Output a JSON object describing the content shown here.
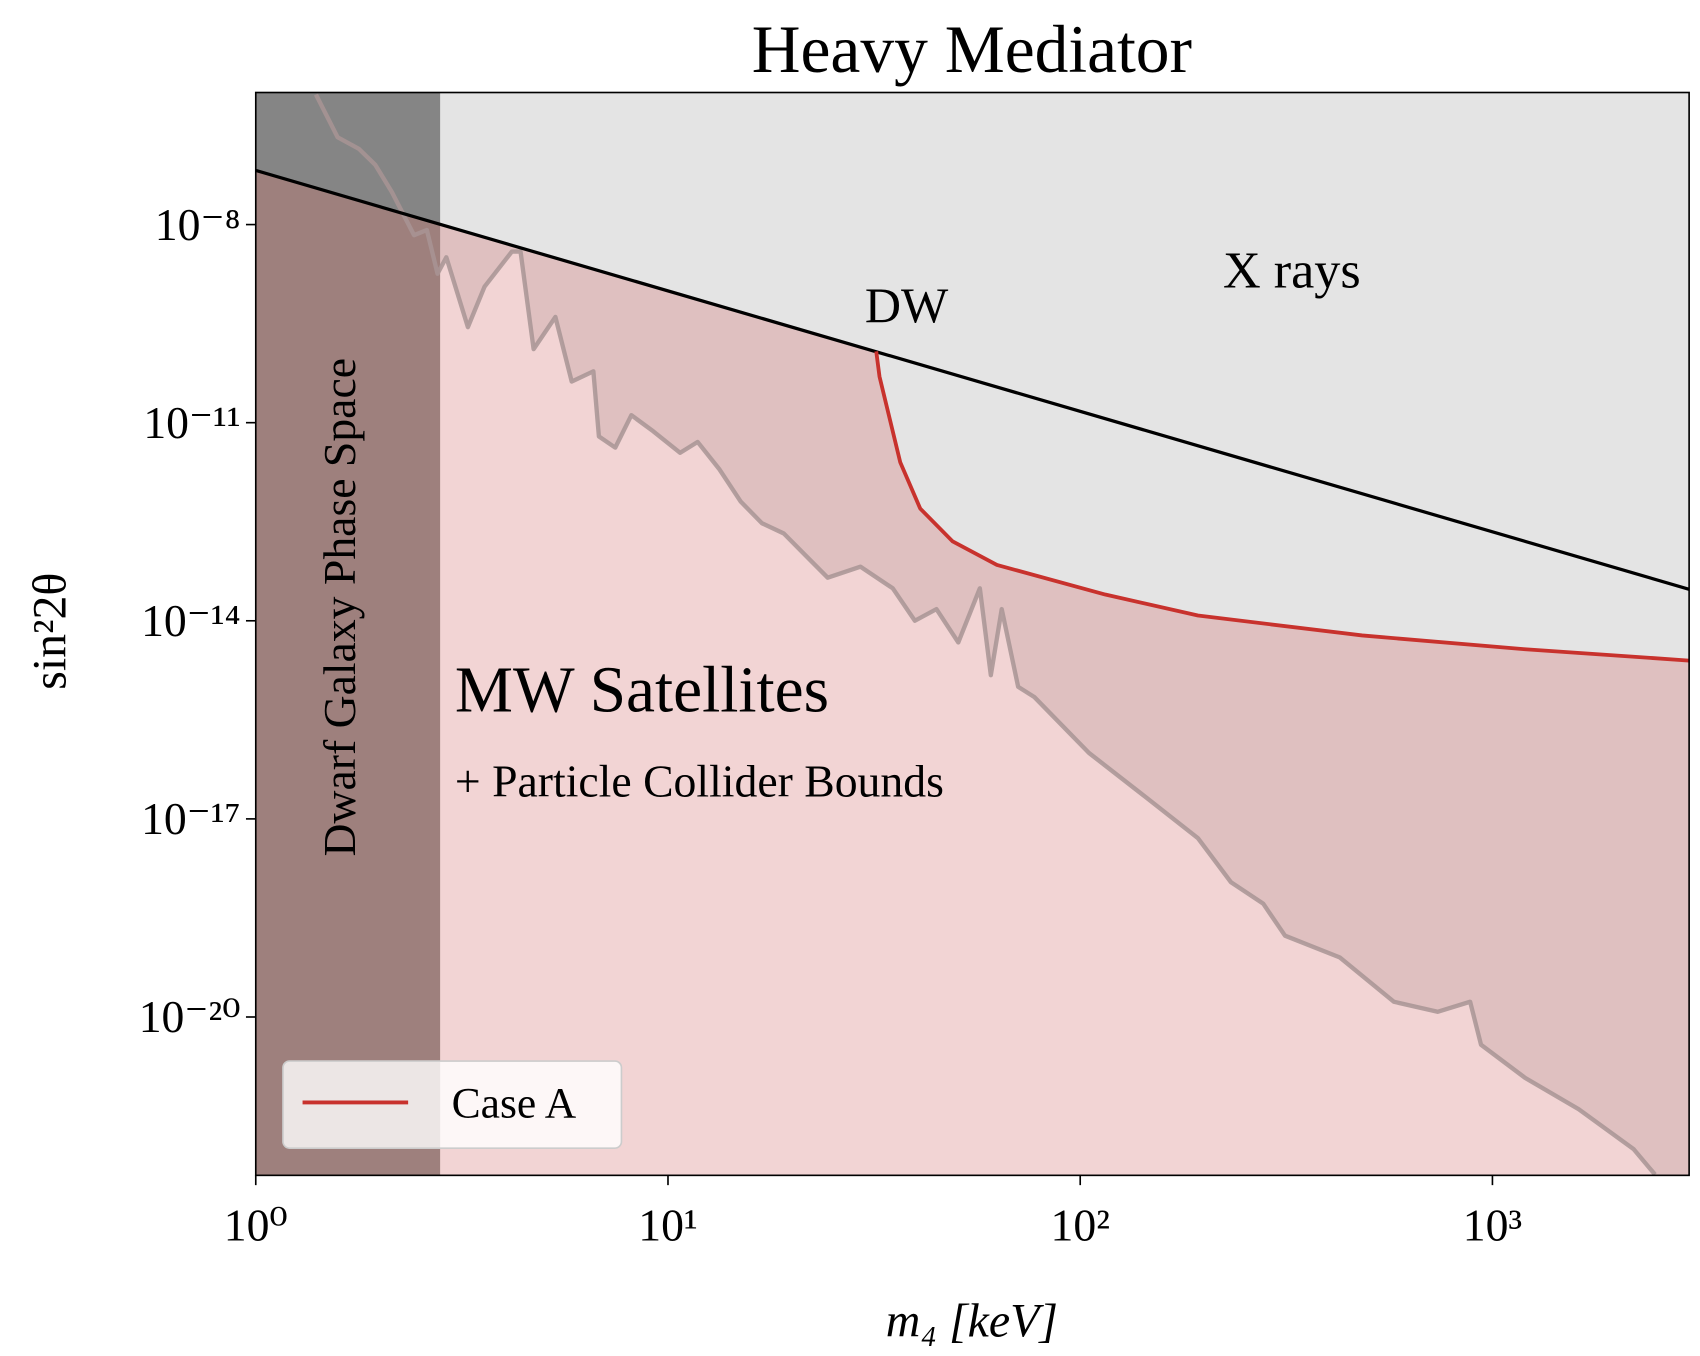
{
  "chart_data": {
    "type": "line",
    "title": "Heavy Mediator",
    "x_label": "m₄ [keV]",
    "y_label": "sin²2θ",
    "log_x": true,
    "log_y": true,
    "xlim": [
      1,
      3000
    ],
    "ylim": [
      1e-06,
      4e-23
    ],
    "xticks": [
      {
        "value": 1,
        "label": "10⁰"
      },
      {
        "value": 10,
        "label": "10¹"
      },
      {
        "value": 100,
        "label": "10²"
      },
      {
        "value": 1000,
        "label": "10³"
      }
    ],
    "yticks": [
      {
        "value": 1e-08,
        "label": "10⁻⁸"
      },
      {
        "value": 1e-11,
        "label": "10⁻¹¹"
      },
      {
        "value": 1e-14,
        "label": "10⁻¹⁴"
      },
      {
        "value": 1e-17,
        "label": "10⁻¹⁷"
      },
      {
        "value": 1e-20,
        "label": "10⁻²⁰"
      }
    ],
    "series": [
      {
        "name": "Case A",
        "color": "#c8322d",
        "x": [
          32,
          32.6,
          36.6,
          40.9,
          49,
          62.8,
          115,
          193,
          483,
          1200,
          3000
        ],
        "values": [
          1.2e-10,
          5e-11,
          2.5e-12,
          5e-13,
          1.6e-13,
          7e-14,
          2.5e-14,
          1.2e-14,
          6e-15,
          3.7e-15,
          2.5e-15
        ]
      }
    ],
    "dw_line": {
      "color": "#000000",
      "x": [
        1,
        3000
      ],
      "values": [
        6.6e-08,
        3e-14
      ]
    },
    "satellite_bound": {
      "color": "#a89494",
      "x": [
        1.4,
        1.58,
        1.78,
        1.95,
        2.14,
        2.42,
        2.6,
        2.76,
        2.9,
        3.27,
        3.59,
        4.18,
        4.39,
        4.72,
        5.33,
        5.84,
        6.59,
        6.8,
        7.45,
        8.15,
        9.21,
        10.7,
        11.8,
        13.3,
        15,
        16.9,
        19.1,
        21.6,
        24.4,
        29.3,
        35.1,
        39.7,
        44.8,
        50.6,
        57.1,
        60.7,
        64.5,
        70.7,
        77.4,
        105,
        142,
        193,
        232,
        278,
        314,
        426,
        577,
        736,
        883,
        938,
        1200,
        1620,
        2200,
        2480
      ],
      "values": [
        9.3e-07,
        2.1e-07,
        1.4e-07,
        8e-08,
        3.1e-08,
        6.9e-09,
        8.3e-09,
        1.8e-09,
        3.2e-09,
        2.8e-10,
        1.15e-09,
        3.9e-09,
        3.9e-09,
        1.3e-10,
        4e-10,
        4.2e-11,
        6e-11,
        6.2e-12,
        4.2e-12,
        1.3e-11,
        7.4e-12,
        3.5e-12,
        5.1e-12,
        2e-12,
        6.4e-13,
        3e-13,
        2.1e-13,
        9.7e-14,
        4.5e-14,
        6.6e-14,
        3.1e-14,
        1e-14,
        1.5e-14,
        4.7e-15,
        3.1e-14,
        1.5e-15,
        1.5e-14,
        1e-15,
        7e-16,
        1e-16,
        2.3e-17,
        5.1e-18,
        1.1e-18,
        5.2e-19,
        1.7e-19,
        8e-20,
        1.7e-20,
        1.2e-20,
        1.7e-20,
        3.8e-21,
        1.2e-21,
        4e-22,
        1e-22,
        4.1e-23
      ]
    },
    "dwarf_xmax": 2.8,
    "fill_colors": {
      "allowed": "#f2d4d4",
      "satellites": "#dfc0c0",
      "xrays": "#e4e4e4",
      "dwarf": "#9e807d",
      "dwarf_xrays": "#858585"
    },
    "annotations": [
      {
        "text": "DW"
      },
      {
        "text": "X rays"
      },
      {
        "text": "MW Satellites"
      },
      {
        "text": "+ Particle Collider Bounds"
      },
      {
        "text": "Dwarf Galaxy Phase Space"
      }
    ],
    "legend_position": "lower left"
  }
}
